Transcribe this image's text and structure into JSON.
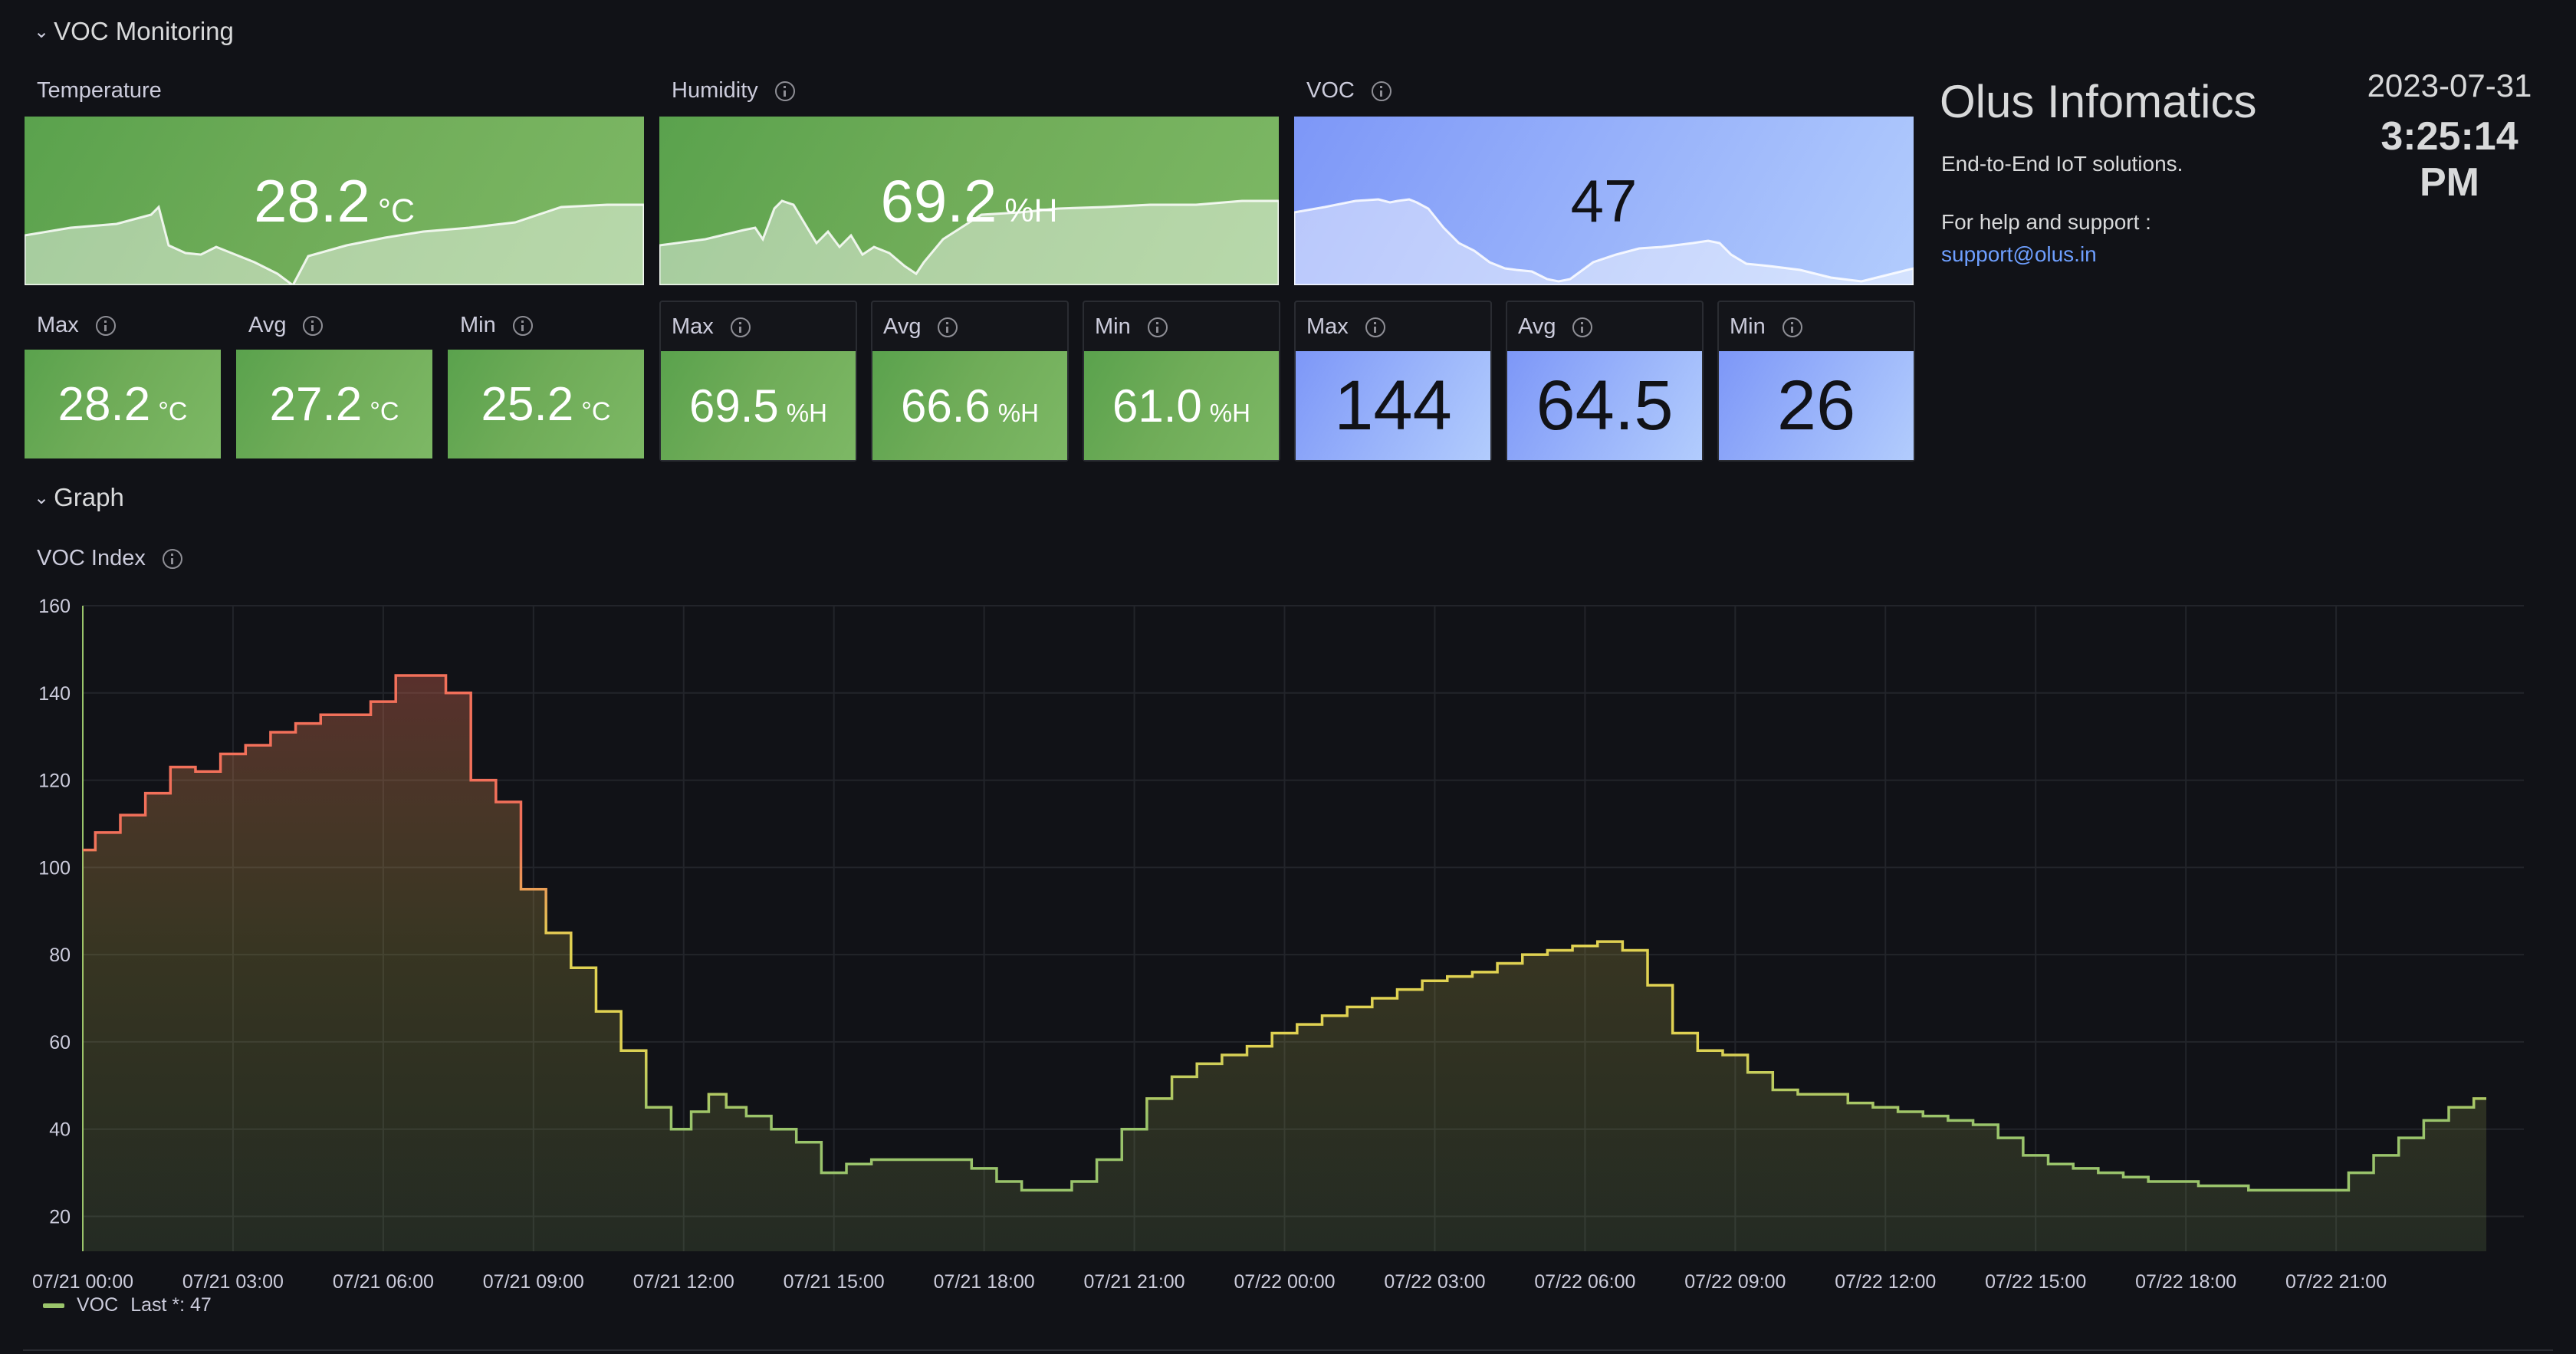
{
  "rows": {
    "voc_monitoring": "VOC Monitoring",
    "graph": "Graph"
  },
  "temperature": {
    "title": "Temperature",
    "value": "28.2",
    "unit": "°C",
    "max": {
      "label": "Max",
      "value": "28.2",
      "unit": "°C"
    },
    "avg": {
      "label": "Avg",
      "value": "27.2",
      "unit": "°C"
    },
    "min": {
      "label": "Min",
      "value": "25.2",
      "unit": "°C"
    }
  },
  "humidity": {
    "title": "Humidity",
    "value": "69.2",
    "unit": "%H",
    "max": {
      "label": "Max",
      "value": "69.5",
      "unit": "%H"
    },
    "avg": {
      "label": "Avg",
      "value": "66.6",
      "unit": "%H"
    },
    "min": {
      "label": "Min",
      "value": "61.0",
      "unit": "%H"
    }
  },
  "voc": {
    "title": "VOC",
    "value": "47",
    "max": {
      "label": "Max",
      "value": "144"
    },
    "avg": {
      "label": "Avg",
      "value": "64.5"
    },
    "min": {
      "label": "Min",
      "value": "26"
    }
  },
  "company": {
    "name": "Olus Infomatics",
    "tagline": "End-to-End IoT solutions.",
    "help": "For help and support :",
    "email": "support@olus.in"
  },
  "clock": {
    "date": "2023-07-31",
    "time": "3:25:14",
    "ampm": "PM"
  },
  "colors": {
    "background": "#111217",
    "green": "#73bf69",
    "blue": "#8ab8ff",
    "line_low": "#9ac46b",
    "line_mid": "#e0d252",
    "line_high": "#f2705a"
  },
  "chart_data": {
    "type": "line",
    "title": "VOC Index",
    "xlabel": "",
    "ylabel": "",
    "ylim": [
      12,
      160
    ],
    "yticks": [
      20,
      40,
      60,
      80,
      100,
      120,
      140,
      160
    ],
    "xticks": [
      "07/21 00:00",
      "07/21 03:00",
      "07/21 06:00",
      "07/21 09:00",
      "07/21 12:00",
      "07/21 15:00",
      "07/21 18:00",
      "07/21 21:00",
      "07/22 00:00",
      "07/22 03:00",
      "07/22 06:00",
      "07/22 09:00",
      "07/22 12:00",
      "07/22 15:00",
      "07/22 18:00",
      "07/22 21:00"
    ],
    "x_unit": "hours from 07/21 00:00",
    "grid": true,
    "legend": "bottom-left",
    "series": [
      {
        "name": "VOC",
        "legend_suffix": "Last *: 47",
        "x": [
          0,
          0.5,
          1,
          1.5,
          2,
          2.5,
          3,
          3.5,
          4,
          4.5,
          5,
          5.5,
          6,
          6.5,
          7,
          7.5,
          8,
          8.5,
          9,
          9.5,
          10,
          10.5,
          11,
          11.5,
          12,
          12.3,
          12.7,
          13,
          13.5,
          14,
          14.5,
          15,
          15.5,
          16,
          16.5,
          17,
          17.5,
          18,
          18.5,
          19,
          19.5,
          20,
          20.5,
          21,
          21.5,
          22,
          22.5,
          23,
          23.5,
          24,
          24.5,
          25,
          25.5,
          26,
          26.5,
          27,
          27.5,
          28,
          28.5,
          29,
          29.5,
          30,
          30.5,
          31,
          31.5,
          32,
          32.5,
          33,
          33.5,
          34,
          34.5,
          35,
          35.5,
          36,
          36.5,
          37,
          37.5,
          38,
          38.5,
          39,
          39.5,
          40,
          40.5,
          41,
          41.5,
          42,
          42.5,
          43,
          43.5,
          44,
          44.5,
          45,
          45.5,
          46,
          46.5,
          47,
          47.5,
          48
        ],
        "values": [
          104,
          108,
          112,
          117,
          123,
          122,
          126,
          128,
          131,
          133,
          135,
          135,
          138,
          144,
          144,
          140,
          120,
          115,
          95,
          85,
          77,
          67,
          58,
          45,
          40,
          44,
          48,
          45,
          43,
          40,
          37,
          30,
          32,
          33,
          33,
          33,
          33,
          31,
          28,
          26,
          26,
          28,
          33,
          40,
          47,
          52,
          55,
          57,
          59,
          62,
          64,
          66,
          68,
          70,
          72,
          74,
          75,
          76,
          78,
          80,
          81,
          82,
          83,
          81,
          73,
          62,
          58,
          57,
          53,
          49,
          48,
          48,
          46,
          45,
          44,
          43,
          42,
          41,
          38,
          34,
          32,
          31,
          30,
          29,
          28,
          28,
          27,
          27,
          26,
          26,
          26,
          26,
          30,
          34,
          38,
          42,
          45,
          47
        ]
      }
    ]
  }
}
